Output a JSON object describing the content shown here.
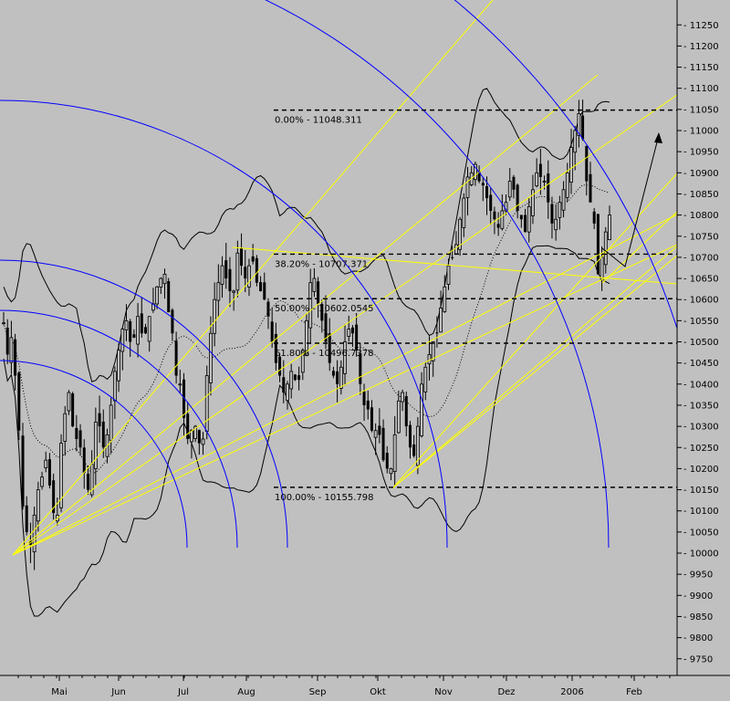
{
  "chart_data": {
    "type": "candlestick",
    "title": "",
    "xlabel": "",
    "ylabel": "",
    "ylim": [
      9700,
      11300
    ],
    "y_ticks": [
      9750,
      9800,
      9850,
      9900,
      9950,
      10000,
      10050,
      10100,
      10150,
      10200,
      10250,
      10300,
      10350,
      10400,
      10450,
      10500,
      10550,
      10600,
      10650,
      10700,
      10750,
      10800,
      10850,
      10900,
      10950,
      11000,
      11050,
      11100,
      11150,
      11200,
      11250
    ],
    "x_tick_labels": [
      "Mai",
      "Jun",
      "Jul",
      "Aug",
      "Sep",
      "Okt",
      "Nov",
      "Dez",
      "2006",
      "Feb"
    ],
    "colors": {
      "background": "#c0c0c0",
      "price": "#000000",
      "fibonacci": "#000000",
      "gann_fan": "#ffff00",
      "arcs": "#0000ff",
      "bands": "#000000"
    },
    "fibonacci_levels": [
      {
        "label": "0.00% - 11048.311",
        "value": 11048.311
      },
      {
        "label": "38.20% - 10707.371",
        "value": 10707.371
      },
      {
        "label": "50.00% - 10602.0545",
        "value": 10602.0545
      },
      {
        "label": "61.80% - 10496.7378",
        "value": 10496.7378
      },
      {
        "label": "100.00% - 10155.798",
        "value": 10155.798
      }
    ],
    "series": [
      {
        "values": [
          10545,
          10470,
          10510,
          10420,
          10290,
          10110,
          10050,
          10020,
          10090,
          10150,
          10180,
          10220,
          10160,
          10095,
          10090,
          10260,
          10330,
          10380,
          10300,
          10270,
          10250,
          10190,
          10150,
          10210,
          10310,
          10300,
          10250,
          10280,
          10350,
          10430,
          10480,
          10530,
          10550,
          10500,
          10510,
          10560,
          10520,
          10520,
          10560,
          10590,
          10630,
          10650,
          10660,
          10570,
          10520,
          10420,
          10400,
          10320,
          10270,
          10290,
          10300,
          10260,
          10270,
          10420,
          10520,
          10600,
          10640,
          10680,
          10650,
          10620,
          10620,
          10710,
          10680,
          10650,
          10680,
          10690,
          10640,
          10620,
          10600,
          10560,
          10500,
          10450,
          10420,
          10380,
          10400,
          10430,
          10410,
          10410,
          10480,
          10550,
          10640,
          10650,
          10590,
          10550,
          10500,
          10450,
          10420,
          10400,
          10440,
          10500,
          10530,
          10520,
          10480,
          10400,
          10350,
          10340,
          10290,
          10290,
          10280,
          10220,
          10200,
          10200,
          10280,
          10360,
          10380,
          10300,
          10250,
          10230,
          10300,
          10400,
          10440,
          10470,
          10500,
          10520,
          10580,
          10630,
          10680,
          10700,
          10730,
          10790,
          10840,
          10890,
          10900,
          10920,
          10880,
          10870,
          10840,
          10810,
          10790,
          10770,
          10810,
          10830,
          10880,
          10860,
          10810,
          10790,
          10760,
          10820,
          10860,
          10900,
          10890,
          10880,
          10830,
          10780,
          10790,
          10830,
          10860,
          10900,
          10960,
          11000,
          11040,
          10980,
          10880,
          10830,
          10780,
          10660,
          10700,
          10760,
          10800
        ],
        "volatility": 45
      }
    ]
  }
}
